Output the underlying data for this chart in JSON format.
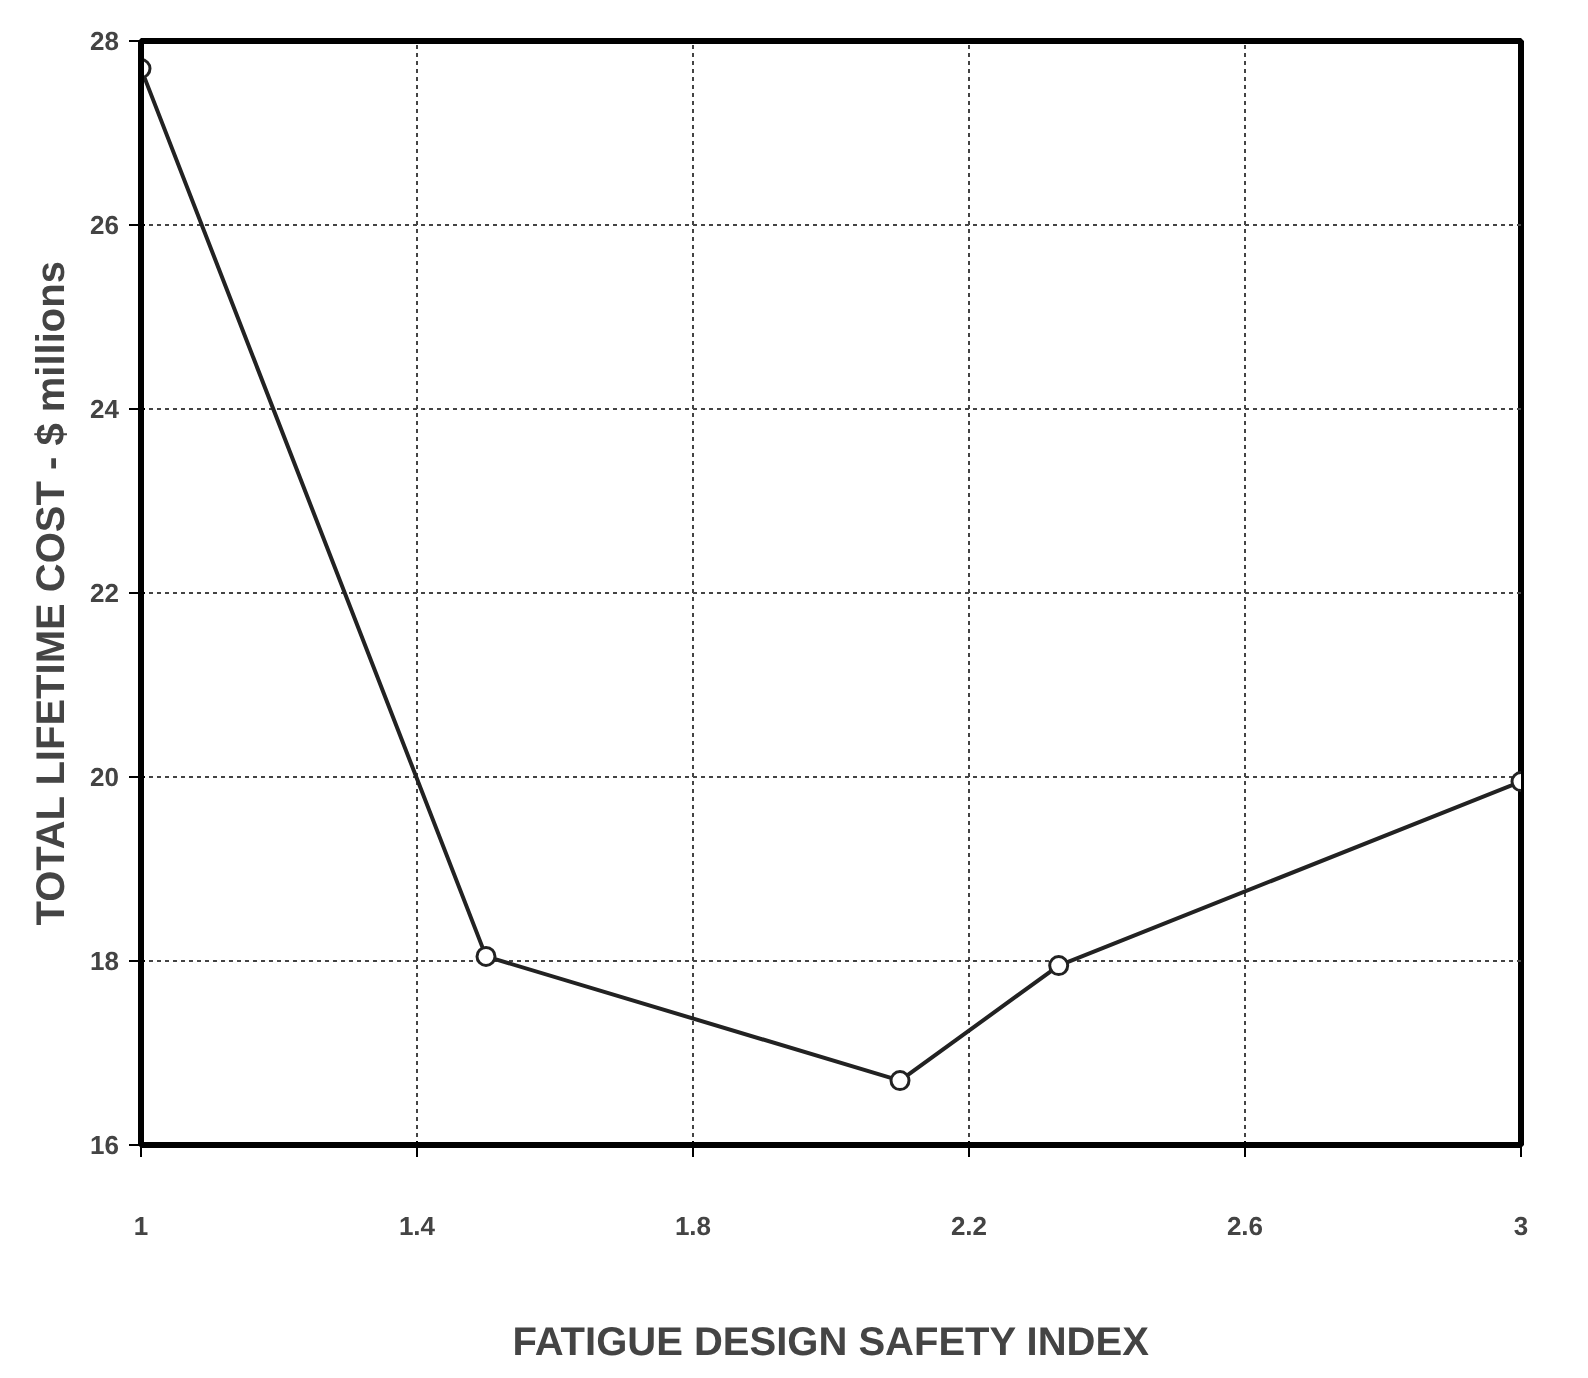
{
  "chart_data": {
    "type": "line",
    "xlabel": "FATIGUE DESIGN SAFETY INDEX",
    "ylabel": "TOTAL LIFETIME COST - $ millions",
    "x": [
      1,
      1.5,
      2.1,
      2.33,
      3
    ],
    "series": [
      {
        "color": "#222222",
        "values": [
          27.7,
          18.05,
          16.7,
          17.95,
          19.95
        ]
      }
    ],
    "xlim": [
      1,
      3
    ],
    "ylim": [
      16,
      28
    ],
    "xticks": [
      1,
      1.4,
      1.8,
      2.2,
      2.6,
      3
    ],
    "yticks": [
      16,
      18,
      20,
      22,
      24,
      26,
      28
    ],
    "grid": true,
    "marker": "circle",
    "line_style": "solid"
  }
}
